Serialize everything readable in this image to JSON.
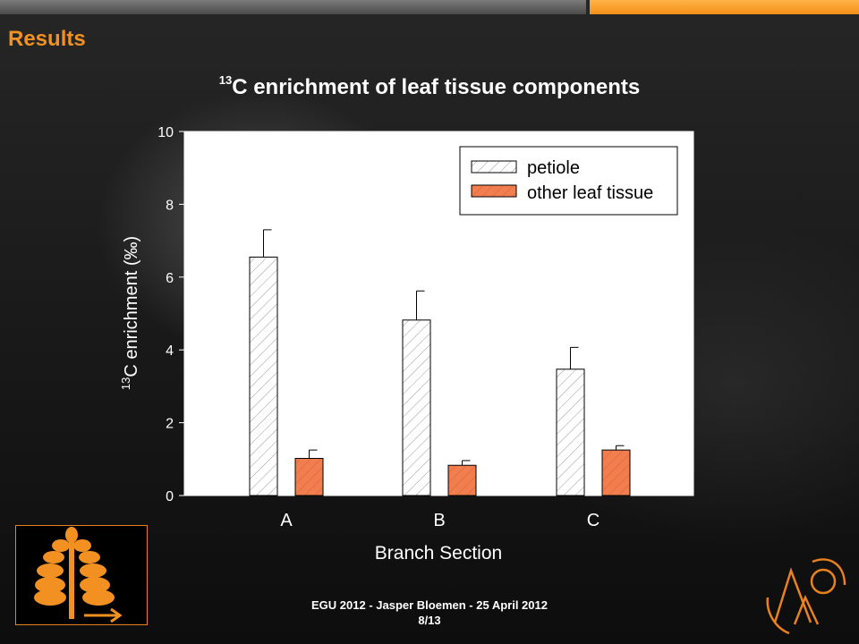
{
  "header": {
    "section_title": "Results"
  },
  "chart_data": {
    "type": "bar",
    "title": "13C enrichment of leaf tissue components",
    "title_superscript": "13",
    "title_text": "C enrichment of leaf tissue components",
    "xlabel": "Branch Section",
    "ylabel": "13C enrichment (‰)",
    "ylabel_superscript": "13",
    "ylabel_text": "C enrichment (‰)",
    "categories": [
      "A",
      "B",
      "C"
    ],
    "ylim": [
      0,
      10
    ],
    "yticks": [
      0,
      2,
      4,
      6,
      8,
      10
    ],
    "grid": false,
    "legend_position": "top-right",
    "series": [
      {
        "name": "petiole",
        "values": [
          6.55,
          4.82,
          3.47
        ],
        "errors": [
          0.75,
          0.8,
          0.6
        ],
        "fill": "#ffffff",
        "hatch": "#9a9a9a"
      },
      {
        "name": "other leaf tissue",
        "values": [
          1.02,
          0.83,
          1.25
        ],
        "errors": [
          0.23,
          0.13,
          0.12
        ],
        "fill": "#f07e4e",
        "hatch": "#e0653a"
      }
    ]
  },
  "footer": {
    "line1": "EGU 2012  - Jasper Bloemen  - 25 April 2012",
    "line2": "8/13"
  },
  "colors": {
    "accent": "#f29122",
    "plot_background": "#ffffff"
  },
  "icons": {
    "tree": "tree-diagram-icon",
    "arrow": "arrow-right-icon",
    "university": "ghent-university-logo"
  }
}
